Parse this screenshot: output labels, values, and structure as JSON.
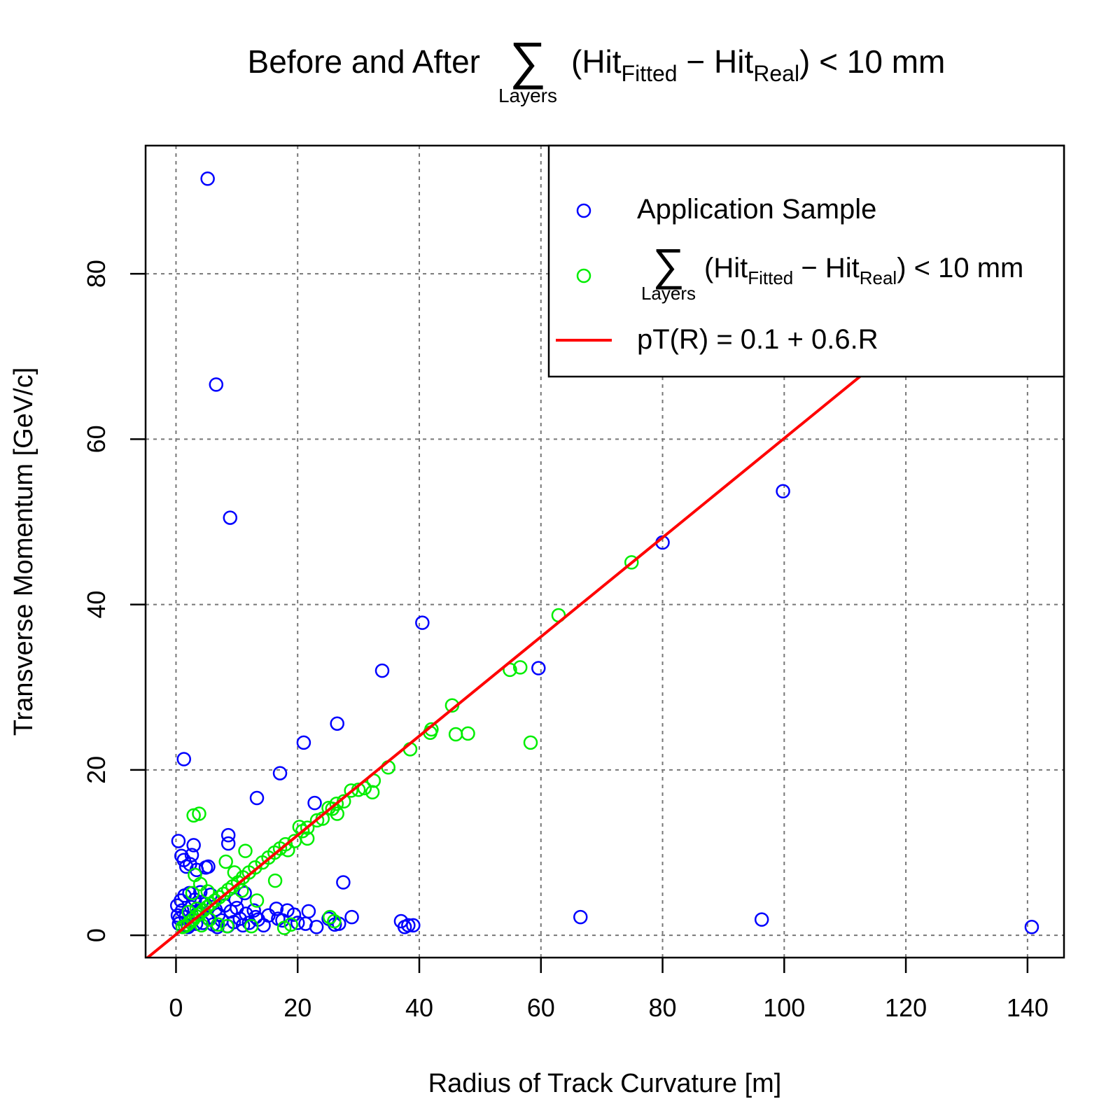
{
  "chart_data": {
    "type": "scatter",
    "title": {
      "prefix": "Before and After",
      "sum_symbol": "∑",
      "sum_under": "Layers",
      "open": "(Hit",
      "sub1": "Fitted",
      "minus": " − Hit",
      "sub2": "Real",
      "close": ") < 10 mm"
    },
    "xlabel": "Radius of Track Curvature [m]",
    "ylabel": "Transverse Momentum [GeV/c]",
    "xlim": [
      -5,
      146
    ],
    "ylim": [
      -2.7,
      95.5
    ],
    "xticks": [
      0,
      20,
      40,
      60,
      80,
      100,
      120,
      140
    ],
    "yticks": [
      0,
      20,
      40,
      60,
      80
    ],
    "xtick_labels": [
      "0",
      "20",
      "40",
      "60",
      "80",
      "100",
      "120",
      "140"
    ],
    "ytick_labels": [
      "0",
      "20",
      "40",
      "60",
      "80"
    ],
    "grid": true,
    "legend_position": "top-right",
    "legend": {
      "application": "Application Sample",
      "cut": {
        "sum_symbol": "∑",
        "sum_under": "Layers",
        "open": "(Hit",
        "sub1": "Fitted",
        "minus": " − Hit",
        "sub2": "Real",
        "close": ") < 10 mm"
      },
      "fit": "pT(R) = 0.1 + 0.6.R"
    },
    "colors": {
      "application": "#0000ff",
      "cut": "#00ee00",
      "fit": "#ff0000"
    },
    "fit_line": {
      "intercept": 0.1,
      "slope": 0.6
    },
    "series": [
      {
        "key": "application",
        "points": [
          [
            5.2,
            91.5
          ],
          [
            8.9,
            50.5
          ],
          [
            1.3,
            21.3
          ],
          [
            40.5,
            37.8
          ],
          [
            33.9,
            32.0
          ],
          [
            59.6,
            32.3
          ],
          [
            80.0,
            47.5
          ],
          [
            99.8,
            53.7
          ],
          [
            26.5,
            25.6
          ],
          [
            21.0,
            23.3
          ],
          [
            17.1,
            19.6
          ],
          [
            13.3,
            16.6
          ],
          [
            22.8,
            16.0
          ],
          [
            27.5,
            6.4
          ],
          [
            0.4,
            11.4
          ],
          [
            2.9,
            10.9
          ],
          [
            8.6,
            12.1
          ],
          [
            8.6,
            11.1
          ],
          [
            0.9,
            9.6
          ],
          [
            2.6,
            9.7
          ],
          [
            1.7,
            8.3
          ],
          [
            4.9,
            8.2
          ],
          [
            5.3,
            8.3
          ],
          [
            1.3,
            9.1
          ],
          [
            2.3,
            8.6
          ],
          [
            3.4,
            7.9
          ],
          [
            6.6,
            66.6
          ],
          [
            0.2,
            3.6
          ],
          [
            0.3,
            2.4
          ],
          [
            0.5,
            1.4
          ],
          [
            0.8,
            4.2
          ],
          [
            1.0,
            3.0
          ],
          [
            1.4,
            4.8
          ],
          [
            1.6,
            2.2
          ],
          [
            1.9,
            1.2
          ],
          [
            2.2,
            5.1
          ],
          [
            2.5,
            3.4
          ],
          [
            2.8,
            1.9
          ],
          [
            3.1,
            4.3
          ],
          [
            3.6,
            2.7
          ],
          [
            4.0,
            5.2
          ],
          [
            4.4,
            1.5
          ],
          [
            4.8,
            3.8
          ],
          [
            5.2,
            2.1
          ],
          [
            5.7,
            4.9
          ],
          [
            6.1,
            1.3
          ],
          [
            6.5,
            3.1
          ],
          [
            7.0,
            2.5
          ],
          [
            7.5,
            1.8
          ],
          [
            8.0,
            3.6
          ],
          [
            8.5,
            1.1
          ],
          [
            9.0,
            2.9
          ],
          [
            9.5,
            1.6
          ],
          [
            10.0,
            3.3
          ],
          [
            10.5,
            2.0
          ],
          [
            11.0,
            1.2
          ],
          [
            11.5,
            2.6
          ],
          [
            12.0,
            1.5
          ],
          [
            12.8,
            3.0
          ],
          [
            13.5,
            1.9
          ],
          [
            14.4,
            1.2
          ],
          [
            16.5,
            3.2
          ],
          [
            17.5,
            1.8
          ],
          [
            18.3,
            3.0
          ],
          [
            19.4,
            2.5
          ],
          [
            21.3,
            1.4
          ],
          [
            21.8,
            2.9
          ],
          [
            23.1,
            1.0
          ],
          [
            25.1,
            2.0
          ],
          [
            26.1,
            1.3
          ],
          [
            26.8,
            1.4
          ],
          [
            28.9,
            2.2
          ],
          [
            37.0,
            1.7
          ],
          [
            37.6,
            1.0
          ],
          [
            38.2,
            1.2
          ],
          [
            39.0,
            1.2
          ],
          [
            66.5,
            2.2
          ],
          [
            96.3,
            1.9
          ],
          [
            140.7,
            1.0
          ],
          [
            13.1,
            2.2
          ],
          [
            15.2,
            2.4
          ],
          [
            9.8,
            4.3
          ],
          [
            11.3,
            5.1
          ],
          [
            16.8,
            2.0
          ],
          [
            20.0,
            1.5
          ],
          [
            6.8,
            1.0
          ],
          [
            2.0,
            1.0
          ],
          [
            0.6,
            2.0
          ],
          [
            4.2,
            4.0
          ],
          [
            3.3,
            1.4
          ]
        ]
      },
      {
        "key": "cut",
        "points": [
          [
            74.9,
            45.1
          ],
          [
            62.9,
            38.7
          ],
          [
            56.6,
            32.4
          ],
          [
            54.9,
            32.1
          ],
          [
            45.4,
            27.8
          ],
          [
            42.0,
            24.9
          ],
          [
            41.8,
            24.5
          ],
          [
            46.0,
            24.3
          ],
          [
            48.0,
            24.4
          ],
          [
            58.3,
            23.3
          ],
          [
            38.5,
            22.5
          ],
          [
            34.9,
            20.3
          ],
          [
            32.5,
            18.7
          ],
          [
            31.0,
            17.8
          ],
          [
            32.3,
            17.3
          ],
          [
            28.8,
            17.5
          ],
          [
            30.0,
            17.6
          ],
          [
            27.6,
            16.2
          ],
          [
            26.4,
            15.9
          ],
          [
            25.7,
            15.3
          ],
          [
            25.1,
            15.4
          ],
          [
            26.5,
            14.7
          ],
          [
            24.1,
            14.1
          ],
          [
            23.2,
            13.9
          ],
          [
            21.6,
            13.0
          ],
          [
            20.3,
            13.1
          ],
          [
            20.8,
            12.6
          ],
          [
            21.6,
            11.7
          ],
          [
            19.5,
            11.4
          ],
          [
            18.0,
            11.0
          ],
          [
            17.1,
            10.5
          ],
          [
            16.2,
            10.0
          ],
          [
            18.4,
            10.3
          ],
          [
            11.4,
            10.2
          ],
          [
            15.2,
            9.4
          ],
          [
            14.2,
            8.8
          ],
          [
            13.0,
            8.2
          ],
          [
            12.0,
            7.6
          ],
          [
            11.0,
            7.0
          ],
          [
            10.2,
            6.4
          ],
          [
            9.3,
            5.9
          ],
          [
            8.6,
            5.5
          ],
          [
            7.8,
            5.0
          ],
          [
            7.1,
            4.6
          ],
          [
            6.4,
            4.2
          ],
          [
            5.7,
            3.8
          ],
          [
            5.1,
            3.4
          ],
          [
            4.5,
            3.0
          ],
          [
            3.9,
            2.6
          ],
          [
            3.3,
            2.3
          ],
          [
            2.8,
            1.9
          ],
          [
            2.3,
            1.6
          ],
          [
            1.9,
            1.3
          ],
          [
            1.5,
            1.1
          ],
          [
            1.1,
            1.0
          ],
          [
            2.9,
            14.5
          ],
          [
            3.8,
            14.7
          ],
          [
            2.7,
            5.1
          ],
          [
            3.1,
            7.3
          ],
          [
            4.0,
            6.2
          ],
          [
            8.2,
            8.9
          ],
          [
            16.3,
            6.6
          ],
          [
            13.3,
            4.2
          ],
          [
            5.5,
            1.9
          ],
          [
            6.9,
            1.3
          ],
          [
            8.4,
            1.1
          ],
          [
            12.4,
            1.1
          ],
          [
            17.8,
            0.9
          ],
          [
            18.9,
            1.3
          ],
          [
            25.3,
            2.2
          ],
          [
            26.0,
            1.7
          ],
          [
            9.6,
            7.6
          ],
          [
            10.8,
            5.4
          ],
          [
            5.2,
            5.3
          ],
          [
            4.2,
            1.2
          ],
          [
            3.4,
            3.2
          ],
          [
            2.1,
            2.8
          ]
        ]
      }
    ]
  }
}
